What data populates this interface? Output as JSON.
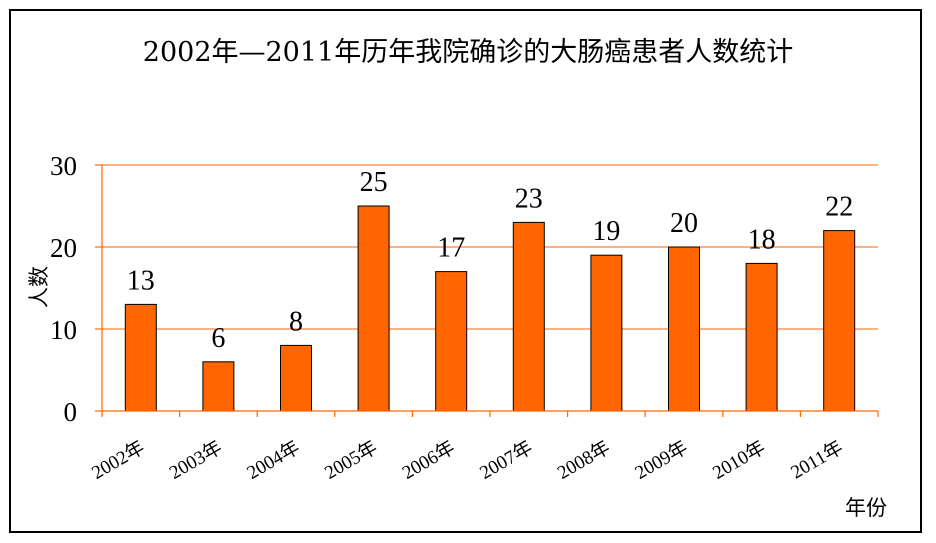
{
  "chart_data": {
    "type": "bar",
    "title": "2002年—2011年历年我院确诊的大肠癌患者人数统计",
    "xlabel": "年份",
    "ylabel": "人数",
    "categories": [
      "2002年",
      "2003年",
      "2004年",
      "2005年",
      "2006年",
      "2007年",
      "2008年",
      "2009年",
      "2010年",
      "2011年"
    ],
    "values": [
      13,
      6,
      8,
      25,
      17,
      23,
      19,
      20,
      18,
      22
    ],
    "ylim": [
      0,
      30
    ],
    "yticks": [
      0,
      10,
      20,
      30
    ],
    "grid": true,
    "legend": "none",
    "bar_color": "#ff6600",
    "grid_color": "#ff6600"
  }
}
